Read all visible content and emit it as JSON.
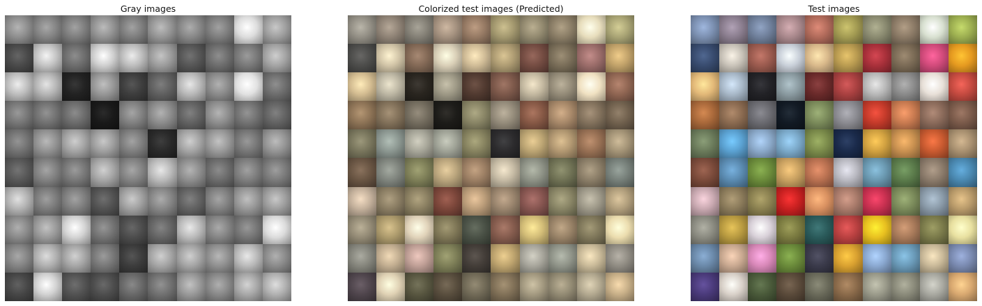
{
  "panels": [
    {
      "title": "Gray images",
      "mode": "gray"
    },
    {
      "title": "Colorized test images (Predicted)",
      "mode": "predicted"
    },
    {
      "title": "Test images",
      "mode": "color"
    }
  ],
  "grid": {
    "rows": 10,
    "cols": 10
  },
  "tile_colors": [
    "#7b8fb0",
    "#8a7d8e",
    "#6f7f9a",
    "#a9888c",
    "#b06a5a",
    "#a29a52",
    "#8a8a70",
    "#8b7a66",
    "#d8e0d0",
    "#9cae50",
    "#384b6e",
    "#c8c2b8",
    "#9a5a4e",
    "#c8cfd8",
    "#d8b88a",
    "#b89a50",
    "#a8303a",
    "#7a6a55",
    "#d04a7a",
    "#e59a20",
    "#e2b878",
    "#a8b8c8",
    "#222226",
    "#8a9aa0",
    "#6a2a2a",
    "#a84040",
    "#b8b8b8",
    "#8a8a8a",
    "#e8e0d8",
    "#c44a40",
    "#a8683a",
    "#8a6a50",
    "#6a6a70",
    "#121a24",
    "#7a8a5a",
    "#8a8a90",
    "#c43a2a",
    "#c87a50",
    "#8a6a5a",
    "#7a5a4a",
    "#6a7a5a",
    "#5aa0d0",
    "#8aa8c8",
    "#7aa8c8",
    "#7a8a4a",
    "#1a2a4a",
    "#d0a040",
    "#c89050",
    "#c85a30",
    "#a89070",
    "#7a4a3a",
    "#5a8ab0",
    "#6a8a3a",
    "#c8a060",
    "#b87050",
    "#b8b8c0",
    "#6a98b0",
    "#5a7a4a",
    "#8a7a6a",
    "#4a88b0",
    "#c8a8b0",
    "#8a7a5a",
    "#8a8050",
    "#c82020",
    "#d89060",
    "#a87a6a",
    "#c83050",
    "#7a8a5a",
    "#8a9aa8",
    "#b89a6a",
    "#8a8a80",
    "#b89a40",
    "#d8d0d8",
    "#7a7a40",
    "#2a5a5a",
    "#b84040",
    "#e8c020",
    "#a87a5a",
    "#7a7a4a",
    "#e8e0a0",
    "#6a88a8",
    "#c8a890",
    "#d888b8",
    "#6a8a3a",
    "#3a3a4a",
    "#d8a030",
    "#8aa8d0",
    "#6a9ab8",
    "#c8b898",
    "#7a8ab0",
    "#4a3a7a",
    "#d8d0c8",
    "#4a5a3a",
    "#5a4a3a",
    "#6a6a5a",
    "#8a6a4a",
    "#9a9a8a",
    "#8a8a7a",
    "#a8a8a0",
    "#d8a870"
  ]
}
